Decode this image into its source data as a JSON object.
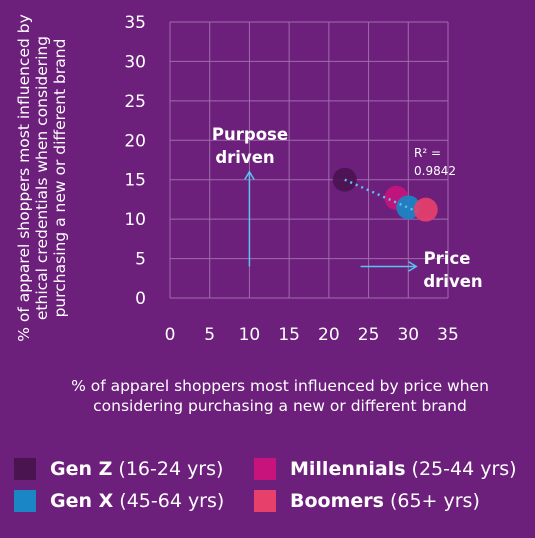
{
  "chart_data": {
    "type": "scatter",
    "ylabel": "% of apparel shoppers most influenced by ethical credentials when considering purchasing a new or different brand",
    "xlabel": "% of apparel shoppers most influenced by price when considering purchasing a new or different brand",
    "xlim": [
      0,
      35
    ],
    "ylim": [
      0,
      35
    ],
    "xticks": [
      "0",
      "5",
      "10",
      "15",
      "20",
      "25",
      "30",
      "35"
    ],
    "yticks": [
      "0",
      "5",
      "10",
      "15",
      "20",
      "25",
      "30",
      "35"
    ],
    "grid": true,
    "series": [
      {
        "name": "Gen Z",
        "age_range": "(16-24 yrs)",
        "color": "#4a1450",
        "x": 22,
        "y": 15
      },
      {
        "name": "Millennials",
        "age_range": "(25-44 yrs)",
        "color": "#c8137d",
        "x": 28.5,
        "y": 12.7
      },
      {
        "name": "Gen X",
        "age_range": "(45-64 yrs)",
        "color": "#1a86c6",
        "x": 30,
        "y": 11.5
      },
      {
        "name": "Boomers",
        "age_range": "(65+ yrs)",
        "color": "#e6406b",
        "x": 32.2,
        "y": 11.2
      }
    ],
    "trendline": {
      "from": [
        22,
        15
      ],
      "to": [
        31,
        11
      ],
      "color": "#5bc3f0"
    },
    "annotations": {
      "r2_line1": "R² =",
      "r2_line2": "0.9842",
      "purpose_line1": "Purpose",
      "purpose_line2": "driven",
      "price_line1": "Price",
      "price_line2": "driven"
    },
    "arrows": {
      "purpose": {
        "from": [
          10,
          4
        ],
        "to": [
          10,
          16
        ]
      },
      "price": {
        "from": [
          24,
          4
        ],
        "to": [
          31,
          4
        ]
      }
    }
  },
  "accent_color": "#5bc3f0",
  "background": "#6d1f7c"
}
